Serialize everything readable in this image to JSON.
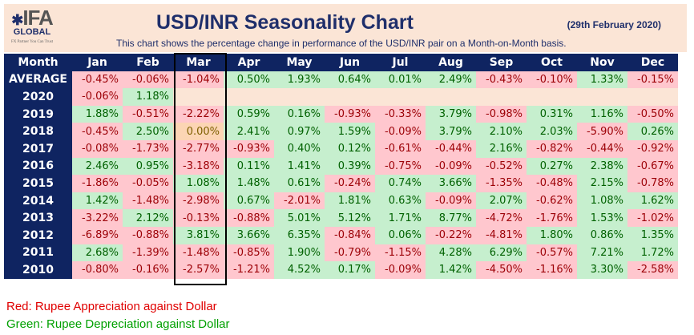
{
  "logo": {
    "text": "IFA",
    "sub": "GLOBAL",
    "tagline": "FX Partner You Can Trust"
  },
  "title": "USD/INR Seasonality Chart",
  "date": "(29th February 2020)",
  "subtitle": "This chart shows the percentage change in performance of the USD/INR pair on a Month-on-Month basis.",
  "colors": {
    "header": "#0f2461",
    "neg_bg": "#ffc7ce",
    "neg_text": "#9c0006",
    "pos_bg": "#c6efce",
    "pos_text": "#006100",
    "legend_red": "#e00000",
    "legend_green": "#00a000"
  },
  "chart_data": {
    "type": "table",
    "highlighted_column": "Mar",
    "columns": [
      "Month",
      "Jan",
      "Feb",
      "Mar",
      "Apr",
      "May",
      "Jun",
      "Jul",
      "Aug",
      "Sep",
      "Oct",
      "Nov",
      "Dec"
    ],
    "rows": [
      {
        "label": "AVERAGE",
        "values": [
          "-0.45%",
          "-0.06%",
          "-1.04%",
          "0.50%",
          "1.93%",
          "0.64%",
          "0.01%",
          "2.49%",
          "-0.43%",
          "-0.10%",
          "1.33%",
          "-0.15%"
        ]
      },
      {
        "label": "2020",
        "values": [
          "-0.06%",
          "1.18%",
          null,
          null,
          null,
          null,
          null,
          null,
          null,
          null,
          null,
          null
        ]
      },
      {
        "label": "2019",
        "values": [
          "1.88%",
          "-0.51%",
          "-2.22%",
          "0.59%",
          "0.16%",
          "-0.93%",
          "-0.33%",
          "3.79%",
          "-0.98%",
          "0.31%",
          "1.16%",
          "-0.50%"
        ]
      },
      {
        "label": "2018",
        "values": [
          "-0.45%",
          "2.50%",
          "0.00%",
          "2.41%",
          "0.97%",
          "1.59%",
          "-0.09%",
          "3.79%",
          "2.10%",
          "2.03%",
          "-5.90%",
          "0.26%"
        ]
      },
      {
        "label": "2017",
        "values": [
          "-0.08%",
          "-1.73%",
          "-2.77%",
          "-0.93%",
          "0.40%",
          "0.12%",
          "-0.61%",
          "-0.44%",
          "2.16%",
          "-0.82%",
          "-0.44%",
          "-0.92%"
        ]
      },
      {
        "label": "2016",
        "values": [
          "2.46%",
          "0.95%",
          "-3.18%",
          "0.11%",
          "1.41%",
          "0.39%",
          "-0.75%",
          "-0.09%",
          "-0.52%",
          "0.27%",
          "2.38%",
          "-0.67%"
        ]
      },
      {
        "label": "2015",
        "values": [
          "-1.86%",
          "-0.05%",
          "1.08%",
          "1.48%",
          "0.61%",
          "-0.24%",
          "0.74%",
          "3.66%",
          "-1.35%",
          "-0.48%",
          "2.15%",
          "-0.78%"
        ]
      },
      {
        "label": "2014",
        "values": [
          "1.42%",
          "-1.48%",
          "-2.98%",
          "0.67%",
          "-2.01%",
          "1.81%",
          "0.63%",
          "-0.09%",
          "2.07%",
          "-0.62%",
          "1.08%",
          "1.62%"
        ]
      },
      {
        "label": "2013",
        "values": [
          "-3.22%",
          "2.12%",
          "-0.13%",
          "-0.88%",
          "5.01%",
          "5.12%",
          "1.71%",
          "8.77%",
          "-4.72%",
          "-1.76%",
          "1.53%",
          "-1.02%"
        ]
      },
      {
        "label": "2012",
        "values": [
          "-6.89%",
          "-0.88%",
          "3.81%",
          "3.66%",
          "6.35%",
          "-0.84%",
          "0.06%",
          "-0.22%",
          "-4.81%",
          "1.80%",
          "0.86%",
          "1.35%"
        ]
      },
      {
        "label": "2011",
        "values": [
          "2.68%",
          "-1.39%",
          "-1.48%",
          "-0.85%",
          "1.90%",
          "-0.79%",
          "-1.15%",
          "4.28%",
          "6.29%",
          "-0.57%",
          "7.21%",
          "1.72%"
        ]
      },
      {
        "label": "2010",
        "values": [
          "-0.80%",
          "-0.16%",
          "-2.57%",
          "-1.21%",
          "4.52%",
          "0.17%",
          "-0.09%",
          "1.42%",
          "-4.50%",
          "-1.16%",
          "3.30%",
          "-2.58%"
        ]
      }
    ]
  },
  "legend": {
    "red": "Red: Rupee Appreciation against Dollar",
    "green": "Green: Rupee Depreciation against Dollar"
  }
}
